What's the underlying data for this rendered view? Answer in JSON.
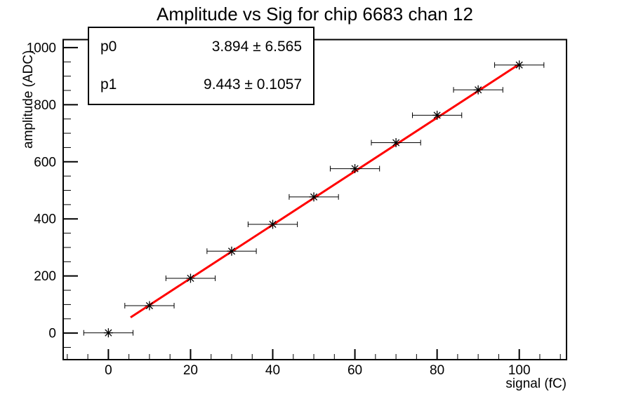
{
  "title": "Amplitude vs Sig for chip 6683 chan 12",
  "stats_box": {
    "rows": [
      {
        "name": "p0",
        "value": "3.894 ± 6.565"
      },
      {
        "name": "p1",
        "value": "9.443 ± 0.1057"
      }
    ]
  },
  "chart_data": {
    "type": "scatter",
    "title": "Amplitude vs Sig for chip 6683 chan 12",
    "xlabel": "signal (fC)",
    "ylabel": "amplitude (ADC)",
    "x": [
      0,
      10,
      20,
      30,
      40,
      50,
      60,
      70,
      80,
      90,
      100
    ],
    "y": [
      1,
      96,
      192,
      287,
      381,
      477,
      576,
      667,
      763,
      852,
      939
    ],
    "x_error": 1.5,
    "marker": "asterisk",
    "marker_color": "#000000",
    "fit": {
      "p0": 3.894,
      "p0_err": 6.565,
      "p1": 9.443,
      "p1_err": 0.1057,
      "color": "#ff0000",
      "line": {
        "x1": 5.4,
        "y1": 55,
        "x2": 99.9,
        "y2": 941
      }
    },
    "xlim": [
      -11,
      111.5
    ],
    "ylim": [
      -93,
      1028
    ],
    "x_major_ticks": [
      0,
      20,
      40,
      60,
      80,
      100
    ],
    "y_major_ticks": [
      0,
      200,
      400,
      600,
      800,
      1000
    ],
    "x_minor_step": 5,
    "y_minor_step": 50,
    "grid": false,
    "frame_color": "#000000",
    "background": "#ffffff"
  }
}
